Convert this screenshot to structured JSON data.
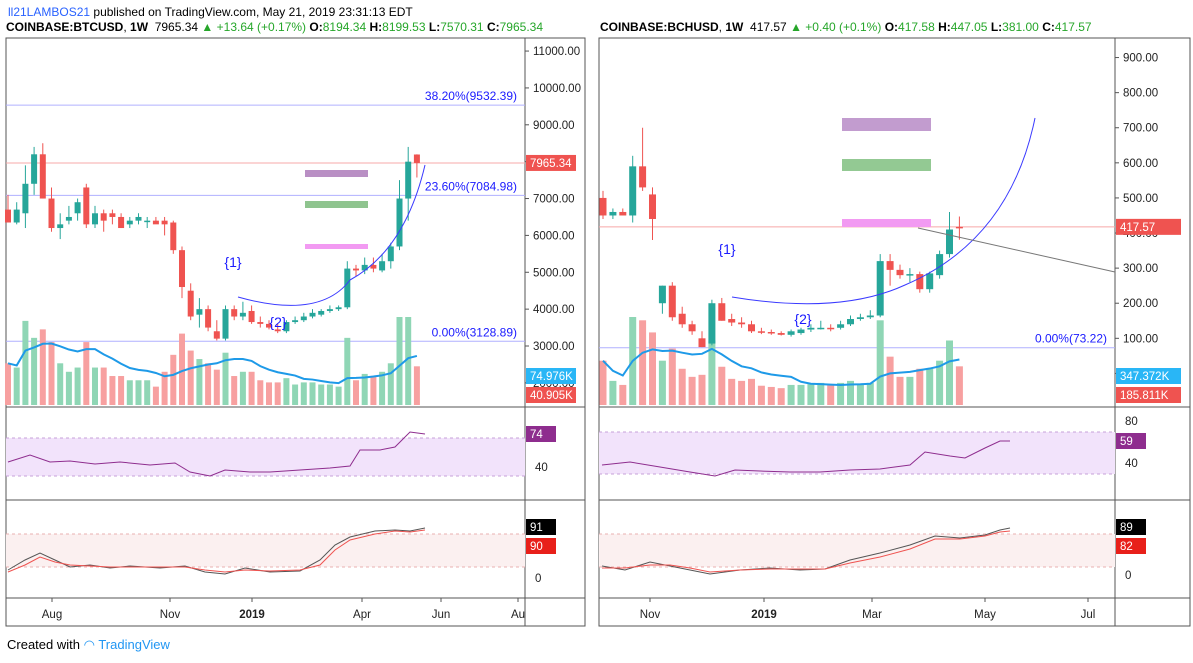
{
  "header": {
    "author": "ll21LAMBOS21",
    "published_text": "published on TradingView.com, May 21, 2019 23:31:13 EDT"
  },
  "footer": {
    "created_with": "Created with",
    "brand": "TradingView"
  },
  "colors": {
    "up": "#26a69a",
    "down": "#ef5350",
    "volume_ma": "#1e9ae8",
    "rsi": "#8e2d8e",
    "fib": "#1a1aff"
  },
  "chart_data": [
    {
      "type": "candlestick",
      "symbol": "COINBASE:BTCUSD",
      "interval": "1W",
      "last": "7965.34",
      "change": "+13.64 (+0.17%)",
      "open": "8194.34",
      "high": "8199.53",
      "low": "7570.31",
      "close": "7965.34",
      "y_ticks": [
        "11000.00",
        "10000.00",
        "9000.00",
        "8000.00",
        "7000.00",
        "6000.00",
        "5000.00",
        "4000.00",
        "3000.00",
        "2000.00"
      ],
      "x_ticks": [
        "Aug",
        "Nov",
        "2019",
        "Apr",
        "Jun",
        "Au"
      ],
      "price_badge": "7965.34",
      "fib_levels": [
        {
          "label": "38.20%(9532.39)",
          "value": 9532.39
        },
        {
          "label": "23.60%(7084.98)",
          "value": 7084.98
        },
        {
          "label": "0.00%(3128.89)",
          "value": 3128.89
        }
      ],
      "annotations": [
        "{1}",
        "{2}"
      ],
      "candles": [
        {
          "o": 6700,
          "h": 7100,
          "l": 6400,
          "c": 6350
        },
        {
          "o": 6350,
          "h": 6900,
          "l": 6300,
          "c": 6700
        },
        {
          "o": 6600,
          "h": 7900,
          "l": 6200,
          "c": 7400
        },
        {
          "o": 7400,
          "h": 8400,
          "l": 7100,
          "c": 8200
        },
        {
          "o": 8200,
          "h": 8500,
          "l": 7000,
          "c": 7000
        },
        {
          "o": 7000,
          "h": 7300,
          "l": 6100,
          "c": 6200
        },
        {
          "o": 6200,
          "h": 6600,
          "l": 5900,
          "c": 6300
        },
        {
          "o": 6400,
          "h": 6800,
          "l": 6300,
          "c": 6500
        },
        {
          "o": 6600,
          "h": 7000,
          "l": 6400,
          "c": 6900
        },
        {
          "o": 7300,
          "h": 7400,
          "l": 6200,
          "c": 6300
        },
        {
          "o": 6300,
          "h": 6800,
          "l": 6200,
          "c": 6600
        },
        {
          "o": 6600,
          "h": 6700,
          "l": 6100,
          "c": 6400
        },
        {
          "o": 6600,
          "h": 6700,
          "l": 6300,
          "c": 6500
        },
        {
          "o": 6500,
          "h": 6600,
          "l": 6200,
          "c": 6200
        },
        {
          "o": 6300,
          "h": 6500,
          "l": 6200,
          "c": 6400
        },
        {
          "o": 6400,
          "h": 6600,
          "l": 6300,
          "c": 6500
        },
        {
          "o": 6400,
          "h": 6500,
          "l": 6200,
          "c": 6400
        },
        {
          "o": 6400,
          "h": 6500,
          "l": 6350,
          "c": 6300
        },
        {
          "o": 6400,
          "h": 6500,
          "l": 6000,
          "c": 6300
        },
        {
          "o": 6350,
          "h": 6400,
          "l": 5500,
          "c": 5600
        },
        {
          "o": 5600,
          "h": 5700,
          "l": 4300,
          "c": 4600
        },
        {
          "o": 4500,
          "h": 4700,
          "l": 3700,
          "c": 3800
        },
        {
          "o": 3850,
          "h": 4300,
          "l": 3500,
          "c": 4000
        },
        {
          "o": 4000,
          "h": 4100,
          "l": 3400,
          "c": 3500
        },
        {
          "o": 3400,
          "h": 3700,
          "l": 3150,
          "c": 3200
        },
        {
          "o": 3200,
          "h": 4100,
          "l": 3150,
          "c": 4000
        },
        {
          "o": 4000,
          "h": 4100,
          "l": 3700,
          "c": 3800
        },
        {
          "o": 3800,
          "h": 4200,
          "l": 3700,
          "c": 3900
        },
        {
          "o": 3950,
          "h": 4100,
          "l": 3600,
          "c": 3650
        },
        {
          "o": 3650,
          "h": 3800,
          "l": 3500,
          "c": 3600
        },
        {
          "o": 3600,
          "h": 3700,
          "l": 3450,
          "c": 3500
        },
        {
          "o": 3450,
          "h": 3600,
          "l": 3350,
          "c": 3400
        },
        {
          "o": 3400,
          "h": 3700,
          "l": 3350,
          "c": 3650
        },
        {
          "o": 3650,
          "h": 3800,
          "l": 3600,
          "c": 3700
        },
        {
          "o": 3700,
          "h": 3900,
          "l": 3650,
          "c": 3800
        },
        {
          "o": 3800,
          "h": 4000,
          "l": 3750,
          "c": 3900
        },
        {
          "o": 3850,
          "h": 4000,
          "l": 3800,
          "c": 3950
        },
        {
          "o": 3950,
          "h": 4100,
          "l": 3900,
          "c": 4000
        },
        {
          "o": 4000,
          "h": 4100,
          "l": 3950,
          "c": 4050
        },
        {
          "o": 4050,
          "h": 5300,
          "l": 4000,
          "c": 5100
        },
        {
          "o": 5100,
          "h": 5200,
          "l": 4900,
          "c": 5050
        },
        {
          "o": 5050,
          "h": 5400,
          "l": 4950,
          "c": 5200
        },
        {
          "o": 5200,
          "h": 5400,
          "l": 5000,
          "c": 5100
        },
        {
          "o": 5050,
          "h": 5500,
          "l": 5000,
          "c": 5300
        },
        {
          "o": 5300,
          "h": 5800,
          "l": 5100,
          "c": 5700
        },
        {
          "o": 5700,
          "h": 7500,
          "l": 5600,
          "c": 7000
        },
        {
          "o": 7000,
          "h": 8400,
          "l": 6400,
          "c": 8000
        },
        {
          "o": 8194.34,
          "h": 8199.53,
          "l": 7570.31,
          "c": 7965.34
        }
      ],
      "volume": {
        "badge_ma": "74.976K",
        "badge_last": "40.905K"
      },
      "rsi": {
        "badge": "74",
        "y_tick": "40"
      },
      "stoch": {
        "badge_k": "91",
        "badge_d": "90",
        "y_tick": "0"
      }
    },
    {
      "type": "candlestick",
      "symbol": "COINBASE:BCHUSD",
      "interval": "1W",
      "last": "417.57",
      "change": "+0.40 (+0.1%)",
      "open": "417.58",
      "high": "447.05",
      "low": "381.00",
      "close": "417.57",
      "y_ticks": [
        "900.00",
        "800.00",
        "700.00",
        "600.00",
        "500.00",
        "400.00",
        "300.00",
        "200.00",
        "100.00",
        "0.00"
      ],
      "x_ticks": [
        "Nov",
        "2019",
        "Mar",
        "May",
        "Jul"
      ],
      "price_badge": "417.57",
      "fib_levels": [
        {
          "label": "0.00%(73.22)",
          "value": 73.22
        }
      ],
      "annotations": [
        "{1}",
        "{2}"
      ],
      "candles": [
        {
          "o": 500,
          "h": 520,
          "l": 440,
          "c": 450
        },
        {
          "o": 450,
          "h": 470,
          "l": 440,
          "c": 460
        },
        {
          "o": 460,
          "h": 470,
          "l": 450,
          "c": 450
        },
        {
          "o": 450,
          "h": 620,
          "l": 430,
          "c": 590
        },
        {
          "o": 590,
          "h": 700,
          "l": 520,
          "c": 530
        },
        {
          "o": 510,
          "h": 530,
          "l": 380,
          "c": 440
        },
        {
          "o": 200,
          "h": 250,
          "l": 170,
          "c": 250
        },
        {
          "o": 250,
          "h": 260,
          "l": 150,
          "c": 160
        },
        {
          "o": 170,
          "h": 190,
          "l": 130,
          "c": 140
        },
        {
          "o": 140,
          "h": 150,
          "l": 110,
          "c": 120
        },
        {
          "o": 100,
          "h": 120,
          "l": 75,
          "c": 75
        },
        {
          "o": 85,
          "h": 210,
          "l": 80,
          "c": 200
        },
        {
          "o": 200,
          "h": 215,
          "l": 150,
          "c": 150
        },
        {
          "o": 155,
          "h": 170,
          "l": 135,
          "c": 145
        },
        {
          "o": 145,
          "h": 160,
          "l": 130,
          "c": 140
        },
        {
          "o": 140,
          "h": 150,
          "l": 115,
          "c": 120
        },
        {
          "o": 120,
          "h": 130,
          "l": 112,
          "c": 118
        },
        {
          "o": 118,
          "h": 125,
          "l": 110,
          "c": 115
        },
        {
          "o": 115,
          "h": 120,
          "l": 108,
          "c": 110
        },
        {
          "o": 110,
          "h": 125,
          "l": 105,
          "c": 120
        },
        {
          "o": 115,
          "h": 130,
          "l": 110,
          "c": 125
        },
        {
          "o": 125,
          "h": 140,
          "l": 118,
          "c": 130
        },
        {
          "o": 130,
          "h": 150,
          "l": 125,
          "c": 130
        },
        {
          "o": 130,
          "h": 140,
          "l": 120,
          "c": 128
        },
        {
          "o": 130,
          "h": 150,
          "l": 125,
          "c": 140
        },
        {
          "o": 140,
          "h": 165,
          "l": 135,
          "c": 155
        },
        {
          "o": 155,
          "h": 170,
          "l": 150,
          "c": 160
        },
        {
          "o": 160,
          "h": 180,
          "l": 155,
          "c": 165
        },
        {
          "o": 165,
          "h": 340,
          "l": 160,
          "c": 320
        },
        {
          "o": 320,
          "h": 340,
          "l": 250,
          "c": 295
        },
        {
          "o": 295,
          "h": 310,
          "l": 270,
          "c": 280
        },
        {
          "o": 280,
          "h": 300,
          "l": 260,
          "c": 283
        },
        {
          "o": 283,
          "h": 290,
          "l": 230,
          "c": 240
        },
        {
          "o": 240,
          "h": 290,
          "l": 230,
          "c": 285
        },
        {
          "o": 280,
          "h": 350,
          "l": 270,
          "c": 340
        },
        {
          "o": 340,
          "h": 460,
          "l": 330,
          "c": 410
        },
        {
          "o": 417.58,
          "h": 447.05,
          "l": 381,
          "c": 417.57
        }
      ],
      "volume": {
        "badge_ma": "347.372K",
        "badge_last": "185.811K"
      },
      "rsi": {
        "badge": "59",
        "y_ticks": [
          "80",
          "40"
        ]
      },
      "stoch": {
        "badge_k": "89",
        "badge_d": "82",
        "y_tick": "0"
      }
    }
  ]
}
